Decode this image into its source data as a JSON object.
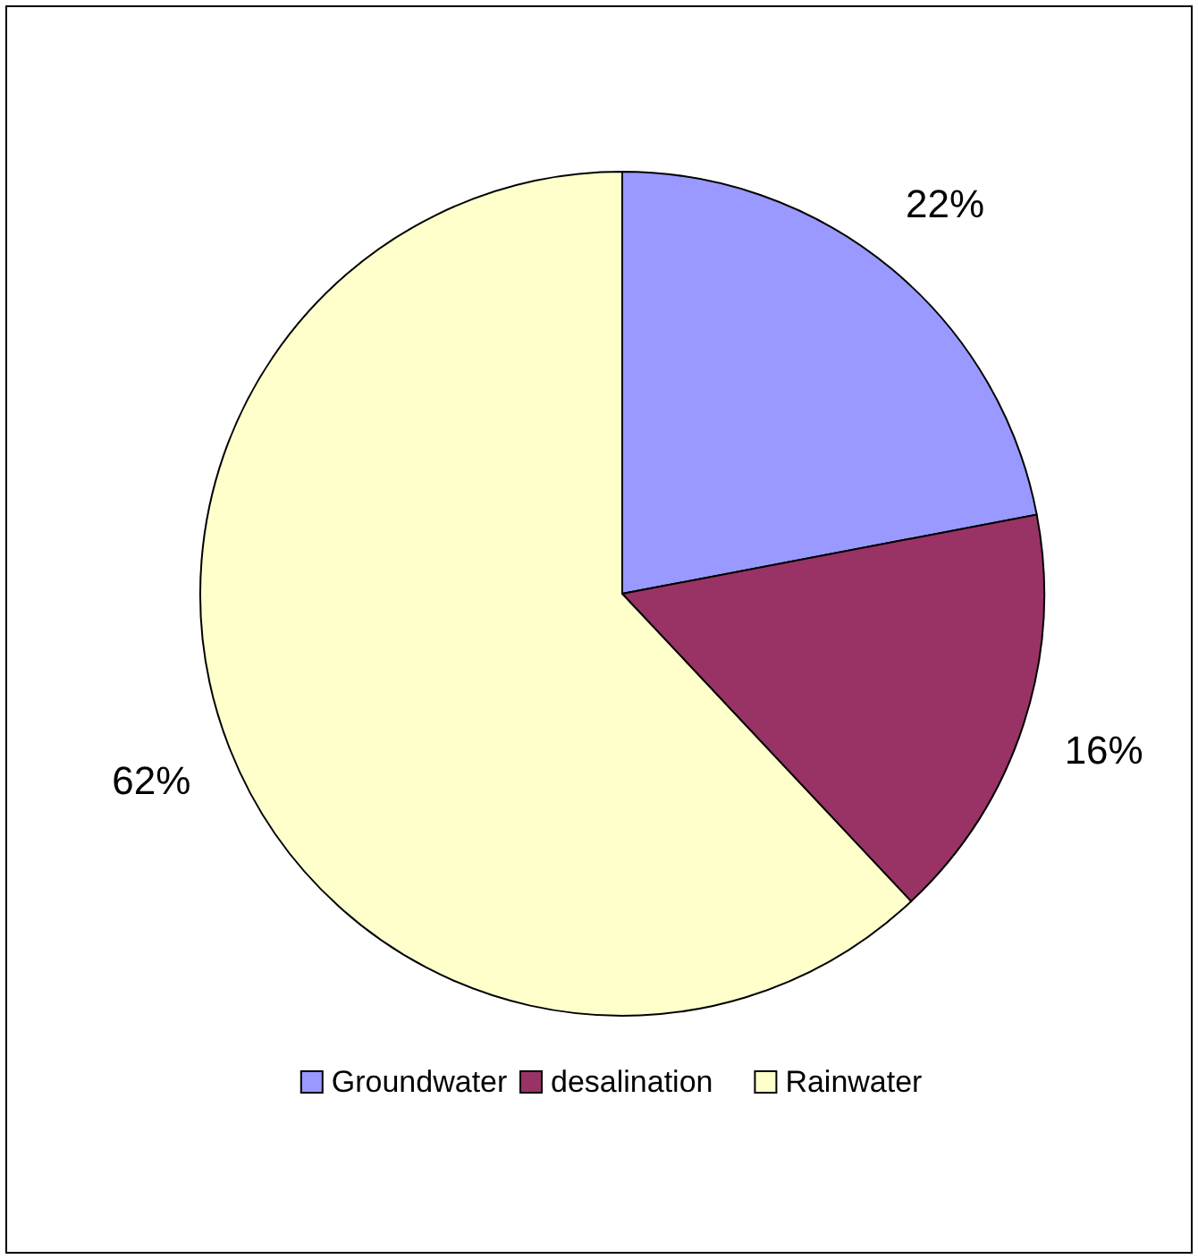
{
  "chart_data": {
    "type": "pie",
    "categories": [
      "Groundwater",
      "desalination",
      "Rainwater"
    ],
    "values": [
      22,
      16,
      62
    ],
    "value_labels": [
      "22%",
      "16%",
      "62%"
    ],
    "colors": [
      "#9999ff",
      "#993366",
      "#ffffcc"
    ],
    "legend": "bottom"
  }
}
